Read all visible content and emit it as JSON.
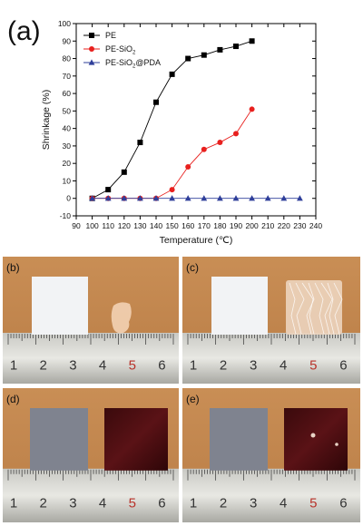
{
  "figure_label": "(a)",
  "chart_data": {
    "type": "line",
    "xlabel": "Temperature (℃)",
    "ylabel": "Shrinkage (%)",
    "xlim": [
      90,
      240
    ],
    "ylim": [
      -10,
      100
    ],
    "xticks": [
      90,
      100,
      110,
      120,
      130,
      140,
      150,
      160,
      170,
      180,
      190,
      200,
      210,
      220,
      230,
      240
    ],
    "yticks": [
      -10,
      0,
      10,
      20,
      30,
      40,
      50,
      60,
      70,
      80,
      90,
      100
    ],
    "legend_position": "top-left",
    "grid": false,
    "series": [
      {
        "name": "PE",
        "color": "#000000",
        "marker": "square",
        "x": [
          100,
          110,
          120,
          130,
          140,
          150,
          160,
          170,
          180,
          190,
          200
        ],
        "y": [
          0,
          5,
          15,
          32,
          55,
          71,
          80,
          82,
          85,
          87,
          90
        ]
      },
      {
        "name": "PE-SiO",
        "name_sub": "2",
        "color": "#e8201e",
        "marker": "circle",
        "x": [
          100,
          110,
          120,
          130,
          140,
          150,
          160,
          170,
          180,
          190,
          200
        ],
        "y": [
          0,
          0,
          0,
          0,
          0,
          5,
          18,
          28,
          32,
          37,
          51
        ]
      },
      {
        "name": "PE-SiO",
        "name_sub": "2",
        "name_suffix": "@PDA",
        "color": "#2f3f9a",
        "marker": "triangle",
        "x": [
          100,
          110,
          120,
          130,
          140,
          150,
          160,
          170,
          180,
          190,
          200,
          210,
          220,
          230
        ],
        "y": [
          0,
          0,
          0,
          0,
          0,
          0,
          0,
          0,
          0,
          0,
          0,
          0,
          0,
          0
        ]
      }
    ]
  },
  "photos": [
    {
      "label": "(b)",
      "sample": "white-and-shrunk",
      "ruler_numbers": [
        "1",
        "2",
        "3",
        "4",
        "5",
        "6"
      ]
    },
    {
      "label": "(c)",
      "sample": "white-and-wrinkled",
      "ruler_numbers": [
        "1",
        "2",
        "3",
        "4",
        "5",
        "6"
      ]
    },
    {
      "label": "(d)",
      "sample": "gray-and-dark",
      "ruler_numbers": [
        "1",
        "2",
        "3",
        "4",
        "5",
        "6"
      ]
    },
    {
      "label": "(e)",
      "sample": "gray-and-dark",
      "ruler_numbers": [
        "1",
        "2",
        "3",
        "4",
        "5",
        "6"
      ]
    }
  ]
}
